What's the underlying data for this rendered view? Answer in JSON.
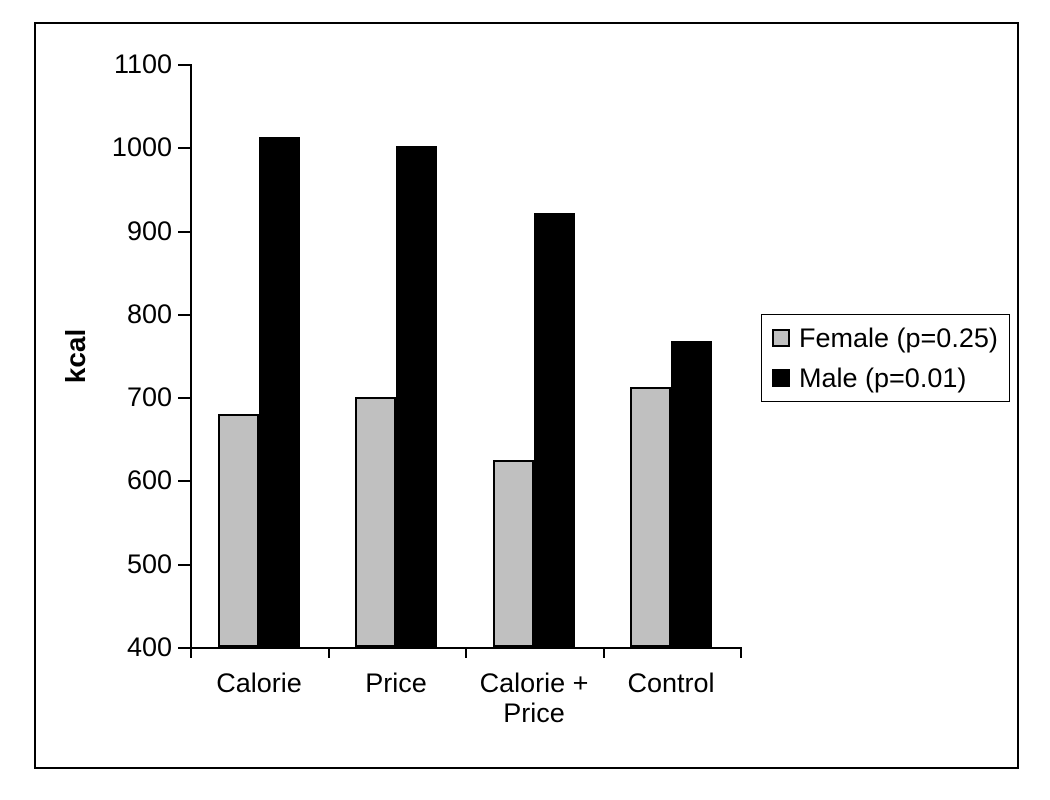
{
  "chart_data": {
    "type": "bar",
    "categories": [
      "Calorie",
      "Price",
      "Calorie + Price",
      "Control"
    ],
    "series": [
      {
        "name": "Female (p=0.25)",
        "color": "#c0c0c0",
        "values": [
          680,
          700,
          625,
          712
        ]
      },
      {
        "name": "Male (p=0.01)",
        "color": "#000000",
        "values": [
          1012,
          1002,
          921,
          768
        ]
      }
    ],
    "title": "",
    "xlabel": "",
    "ylabel": "kcal",
    "ylim": [
      400,
      1100
    ],
    "ytick_step": 100,
    "grid": false,
    "legend_position": "right",
    "axis_color": "#000000",
    "background_color": "#ffffff"
  }
}
